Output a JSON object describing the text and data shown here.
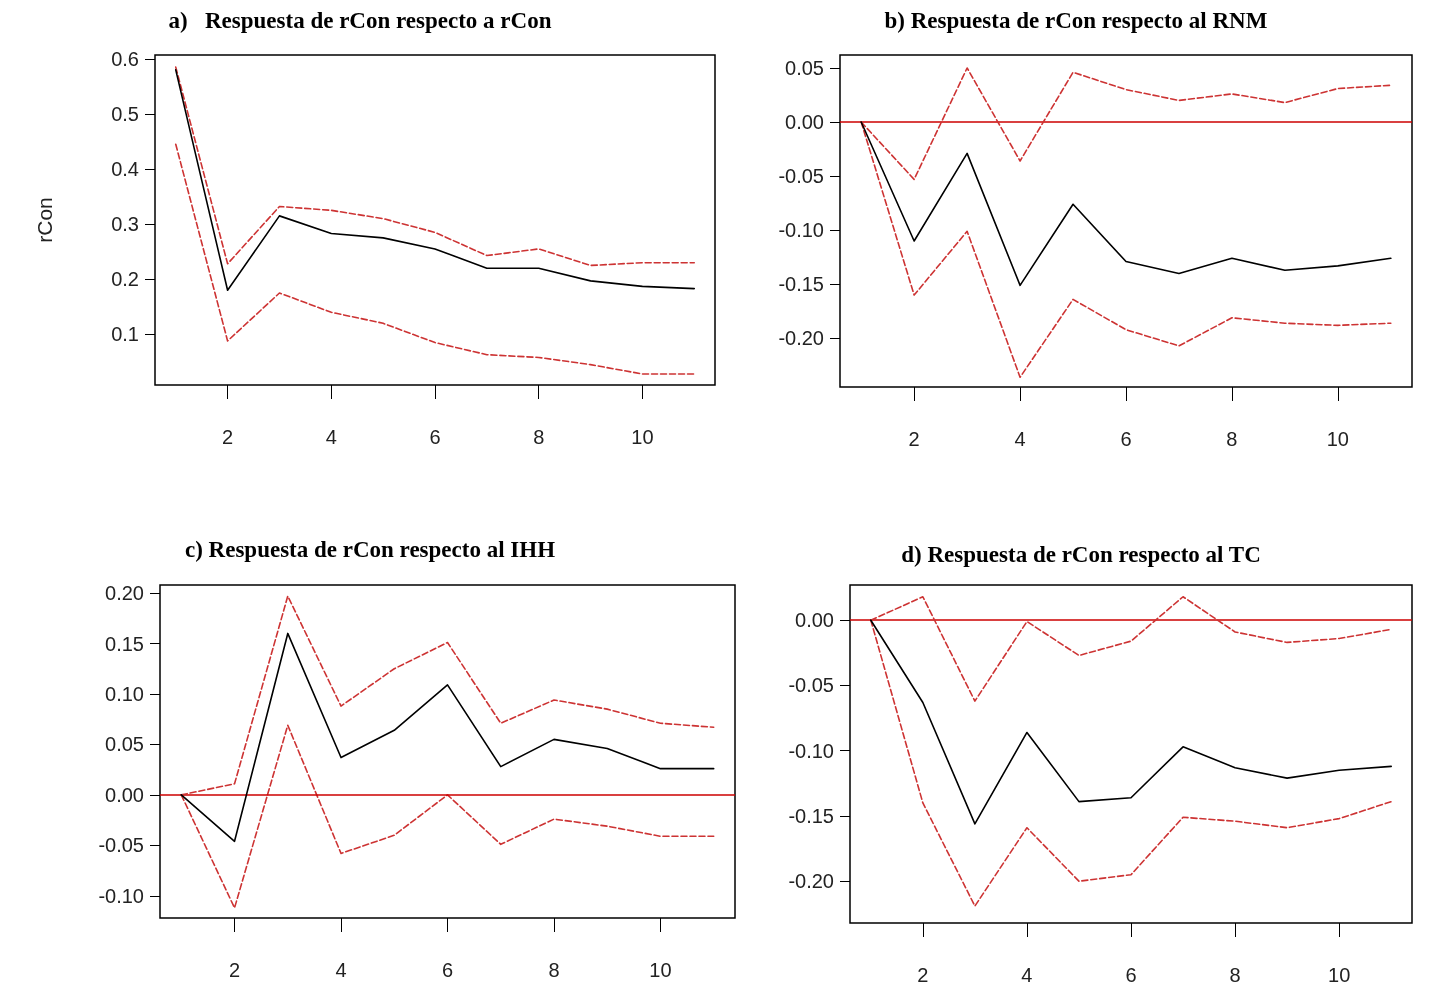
{
  "chart_data": [
    {
      "type": "line",
      "title": "a)   Respuesta de rCon respecto a rCon",
      "ylabel": "rCon",
      "x": [
        1,
        2,
        3,
        4,
        5,
        6,
        7,
        8,
        9,
        10,
        11
      ],
      "xlim": [
        0.6,
        11.4
      ],
      "xticks": [
        2,
        4,
        6,
        8,
        10
      ],
      "ylim": [
        0.008,
        0.607
      ],
      "yticks": [
        0.1,
        0.2,
        0.3,
        0.4,
        0.5,
        0.6
      ],
      "grid": false,
      "marker": "none",
      "series": [
        {
          "color": "#000000",
          "line_style": "solid",
          "values": [
            0.58,
            0.18,
            0.315,
            0.283,
            0.275,
            0.255,
            0.22,
            0.22,
            0.197,
            0.187,
            0.183
          ]
        },
        {
          "color": "#cd3333",
          "line_style": "dashed",
          "values": [
            0.585,
            0.228,
            0.332,
            0.325,
            0.31,
            0.285,
            0.243,
            0.255,
            0.225,
            0.23,
            0.23
          ]
        },
        {
          "color": "#cd3333",
          "line_style": "dashed",
          "values": [
            0.445,
            0.088,
            0.175,
            0.14,
            0.12,
            0.085,
            0.063,
            0.058,
            0.045,
            0.028,
            0.028
          ]
        }
      ]
    },
    {
      "type": "line",
      "title": "b) Respuesta de rCon respecto al RNM",
      "x": [
        1,
        2,
        3,
        4,
        5,
        6,
        7,
        8,
        9,
        10,
        11
      ],
      "xlim": [
        0.6,
        11.4
      ],
      "xticks": [
        2,
        4,
        6,
        8,
        10
      ],
      "ylim": [
        -0.245,
        0.062
      ],
      "yticks": [
        {
          "value": -0.2,
          "label": "-0.20"
        },
        {
          "value": -0.15,
          "label": "-0.15"
        },
        {
          "value": -0.1,
          "label": "-0.10"
        },
        {
          "value": -0.05,
          "label": "-0.05"
        },
        {
          "value": 0,
          "label": "0.00"
        },
        {
          "value": 0.05,
          "label": "0.05"
        }
      ],
      "grid": false,
      "marker": "none",
      "ref_lines": [
        {
          "axis": "y",
          "value": 0,
          "color": "#cc0000"
        }
      ],
      "series": [
        {
          "color": "#000000",
          "line_style": "solid",
          "values": [
            0,
            -0.11,
            -0.029,
            -0.151,
            -0.076,
            -0.129,
            -0.14,
            -0.126,
            -0.137,
            -0.133,
            -0.126
          ]
        },
        {
          "color": "#cd3333",
          "line_style": "dashed",
          "values": [
            0,
            -0.053,
            0.05,
            -0.036,
            0.046,
            0.03,
            0.02,
            0.026,
            0.018,
            0.031,
            0.034
          ]
        },
        {
          "color": "#cd3333",
          "line_style": "dashed",
          "values": [
            0,
            -0.16,
            -0.101,
            -0.236,
            -0.164,
            -0.192,
            -0.207,
            -0.181,
            -0.186,
            -0.188,
            -0.186
          ]
        }
      ]
    },
    {
      "type": "line",
      "title": "c) Respuesta de rCon respecto al IHH",
      "x": [
        1,
        2,
        3,
        4,
        5,
        6,
        7,
        8,
        9,
        10,
        11
      ],
      "xlim": [
        0.6,
        11.4
      ],
      "xticks": [
        2,
        4,
        6,
        8,
        10
      ],
      "ylim": [
        -0.122,
        0.208
      ],
      "yticks": [
        {
          "value": -0.1,
          "label": "-0.10"
        },
        {
          "value": -0.05,
          "label": "-0.05"
        },
        {
          "value": 0,
          "label": "0.00"
        },
        {
          "value": 0.05,
          "label": "0.05"
        },
        {
          "value": 0.1,
          "label": "0.10"
        },
        {
          "value": 0.15,
          "label": "0.15"
        },
        {
          "value": 0.2,
          "label": "0.20"
        }
      ],
      "grid": false,
      "marker": "none",
      "ref_lines": [
        {
          "axis": "y",
          "value": 0,
          "color": "#cc0000"
        }
      ],
      "series": [
        {
          "color": "#000000",
          "line_style": "solid",
          "values": [
            0,
            -0.046,
            0.16,
            0.037,
            0.064,
            0.109,
            0.028,
            0.055,
            0.046,
            0.026,
            0.026
          ]
        },
        {
          "color": "#cd3333",
          "line_style": "dashed",
          "values": [
            0,
            0.011,
            0.197,
            0.088,
            0.125,
            0.151,
            0.071,
            0.094,
            0.085,
            0.071,
            0.067
          ]
        },
        {
          "color": "#cd3333",
          "line_style": "dashed",
          "values": [
            0,
            -0.112,
            0.069,
            -0.058,
            -0.04,
            0,
            -0.049,
            -0.024,
            -0.031,
            -0.041,
            -0.041
          ]
        }
      ]
    },
    {
      "type": "line",
      "title": "d) Respuesta de rCon respecto al TC",
      "x": [
        1,
        2,
        3,
        4,
        5,
        6,
        7,
        8,
        9,
        10,
        11
      ],
      "xlim": [
        0.6,
        11.4
      ],
      "xticks": [
        2,
        4,
        6,
        8,
        10
      ],
      "ylim": [
        -0.232,
        0.027
      ],
      "yticks": [
        {
          "value": -0.2,
          "label": "-0.20"
        },
        {
          "value": -0.15,
          "label": "-0.15"
        },
        {
          "value": -0.1,
          "label": "-0.10"
        },
        {
          "value": -0.05,
          "label": "-0.05"
        },
        {
          "value": 0,
          "label": "0.00"
        }
      ],
      "grid": false,
      "marker": "none",
      "ref_lines": [
        {
          "axis": "y",
          "value": 0,
          "color": "#cc0000"
        }
      ],
      "series": [
        {
          "color": "#000000",
          "line_style": "solid",
          "values": [
            0,
            -0.063,
            -0.156,
            -0.086,
            -0.139,
            -0.136,
            -0.097,
            -0.113,
            -0.121,
            -0.115,
            -0.112
          ]
        },
        {
          "color": "#cd3333",
          "line_style": "dashed",
          "values": [
            0,
            0.018,
            -0.062,
            -0.001,
            -0.027,
            -0.016,
            0.018,
            -0.009,
            -0.017,
            -0.014,
            -0.007
          ]
        },
        {
          "color": "#cd3333",
          "line_style": "dashed",
          "values": [
            0,
            -0.14,
            -0.219,
            -0.159,
            -0.2,
            -0.195,
            -0.151,
            -0.154,
            -0.159,
            -0.152,
            -0.139
          ]
        }
      ]
    }
  ]
}
